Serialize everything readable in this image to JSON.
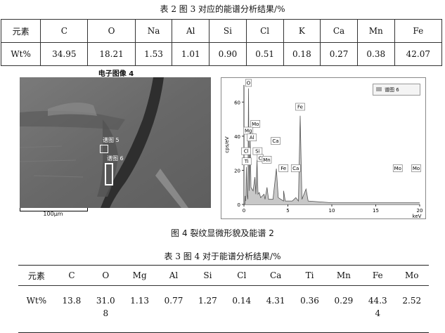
{
  "table2": {
    "caption": "表 2   图 3 对应的能谱分析结果/%",
    "headers": [
      "元素",
      "C",
      "O",
      "Na",
      "Al",
      "Si",
      "Cl",
      "K",
      "Ca",
      "Mn",
      "Fe"
    ],
    "row_label": "Wt%",
    "values": [
      "34.95",
      "18.21",
      "1.53",
      "1.01",
      "0.90",
      "0.51",
      "0.18",
      "0.27",
      "0.38",
      "42.07"
    ]
  },
  "sem": {
    "title": "电子图像 4",
    "spectrum_label_1": "谱图 5",
    "spectrum_label_2": "谱图 6",
    "scale_bar": "100μm"
  },
  "spectrum": {
    "legend": "谱图 6",
    "ylabel": "cps/eV",
    "xlabel": "keV",
    "peaks": [
      "O",
      "Fe",
      "Mo",
      "Mg",
      "Al",
      "Ca",
      "Cl",
      "Si",
      "C",
      "Ti",
      "Mn",
      "Fe",
      "Ca",
      "Mo",
      "Mo"
    ]
  },
  "chart_data": {
    "type": "line",
    "title": "",
    "xlabel": "keV",
    "ylabel": "cps/eV",
    "xlim": [
      0,
      20
    ],
    "ylim": [
      0,
      70
    ],
    "xticks": [
      0,
      5,
      10,
      15,
      20
    ],
    "yticks": [
      0,
      20,
      40,
      60
    ],
    "series": [
      {
        "name": "谱图 6",
        "points": [
          [
            0,
            0
          ],
          [
            0.1,
            0
          ],
          [
            0.15,
            5
          ],
          [
            0.2,
            2
          ],
          [
            0.28,
            22
          ],
          [
            0.35,
            6
          ],
          [
            0.45,
            3
          ],
          [
            0.52,
            68
          ],
          [
            0.6,
            8
          ],
          [
            0.7,
            40
          ],
          [
            0.8,
            10
          ],
          [
            1.04,
            8
          ],
          [
            1.25,
            16
          ],
          [
            1.35,
            6
          ],
          [
            1.49,
            26
          ],
          [
            1.6,
            6
          ],
          [
            1.74,
            7
          ],
          [
            1.9,
            4
          ],
          [
            2.29,
            6
          ],
          [
            2.4,
            3
          ],
          [
            2.62,
            10
          ],
          [
            2.8,
            3
          ],
          [
            3.3,
            3
          ],
          [
            3.69,
            21
          ],
          [
            3.9,
            4
          ],
          [
            4.5,
            2
          ],
          [
            4.51,
            8
          ],
          [
            4.7,
            2
          ],
          [
            5.5,
            2
          ],
          [
            5.9,
            4
          ],
          [
            6.2,
            2
          ],
          [
            6.4,
            52
          ],
          [
            6.6,
            3
          ],
          [
            7.06,
            9
          ],
          [
            7.3,
            2
          ],
          [
            10,
            1
          ],
          [
            17.5,
            1
          ],
          [
            20,
            1
          ]
        ]
      }
    ]
  },
  "figure4_caption": "图 4  裂纹显微形貌及能谱 2",
  "table3": {
    "caption": "表 3   图 4 对于能谱分析结果/%",
    "headers": [
      "元素",
      "C",
      "O",
      "Mg",
      "Al",
      "Si",
      "Cl",
      "Ca",
      "Ti",
      "Mn",
      "Fe",
      "Mo"
    ],
    "row_label": "Wt%",
    "values": [
      "13.8",
      "31.0\n8",
      "1.13",
      "0.77",
      "1.27",
      "0.14",
      "4.31",
      "0.36",
      "0.29",
      "44.3\n4",
      "2.52"
    ]
  }
}
